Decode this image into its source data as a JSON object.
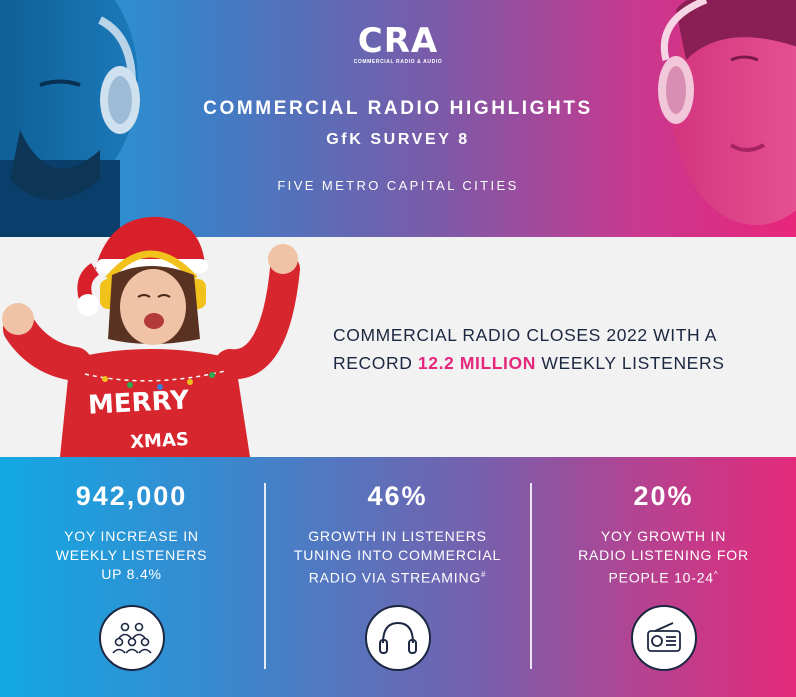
{
  "header": {
    "logo": "CRA",
    "logo_subtitle": "COMMERCIAL RADIO & AUDIO",
    "title": "COMMERCIAL RADIO HIGHLIGHTS",
    "subtitle": "GfK SURVEY 8",
    "region": "FIVE METRO CAPITAL CITIES"
  },
  "headline": {
    "part1": "COMMERCIAL RADIO CLOSES 2022 WITH A RECORD ",
    "highlight": "12.2 MILLION",
    "part2": " WEEKLY LISTENERS"
  },
  "sweater_text": {
    "line1": "MERRY",
    "line2": "XMAS"
  },
  "stats": [
    {
      "value": "942,000",
      "desc": "YOY INCREASE IN\nWEEKLY LISTENERS\nUP 8.4%",
      "icon": "people-group-icon"
    },
    {
      "value": "46%",
      "desc_main": "GROWTH IN LISTENERS\nTUNING INTO COMMERCIAL\nRADIO VIA STREAMING",
      "desc_mark": "#",
      "icon": "headphones-icon"
    },
    {
      "value": "20%",
      "desc_main": "YOY GROWTH IN\nRADIO LISTENING FOR\nPEOPLE 10-24",
      "desc_mark": "^",
      "icon": "radio-icon"
    }
  ],
  "colors": {
    "navy": "#1c2741",
    "pink": "#e4287b",
    "blue": "#17a6df",
    "band_bg": "#f2f2f2"
  }
}
